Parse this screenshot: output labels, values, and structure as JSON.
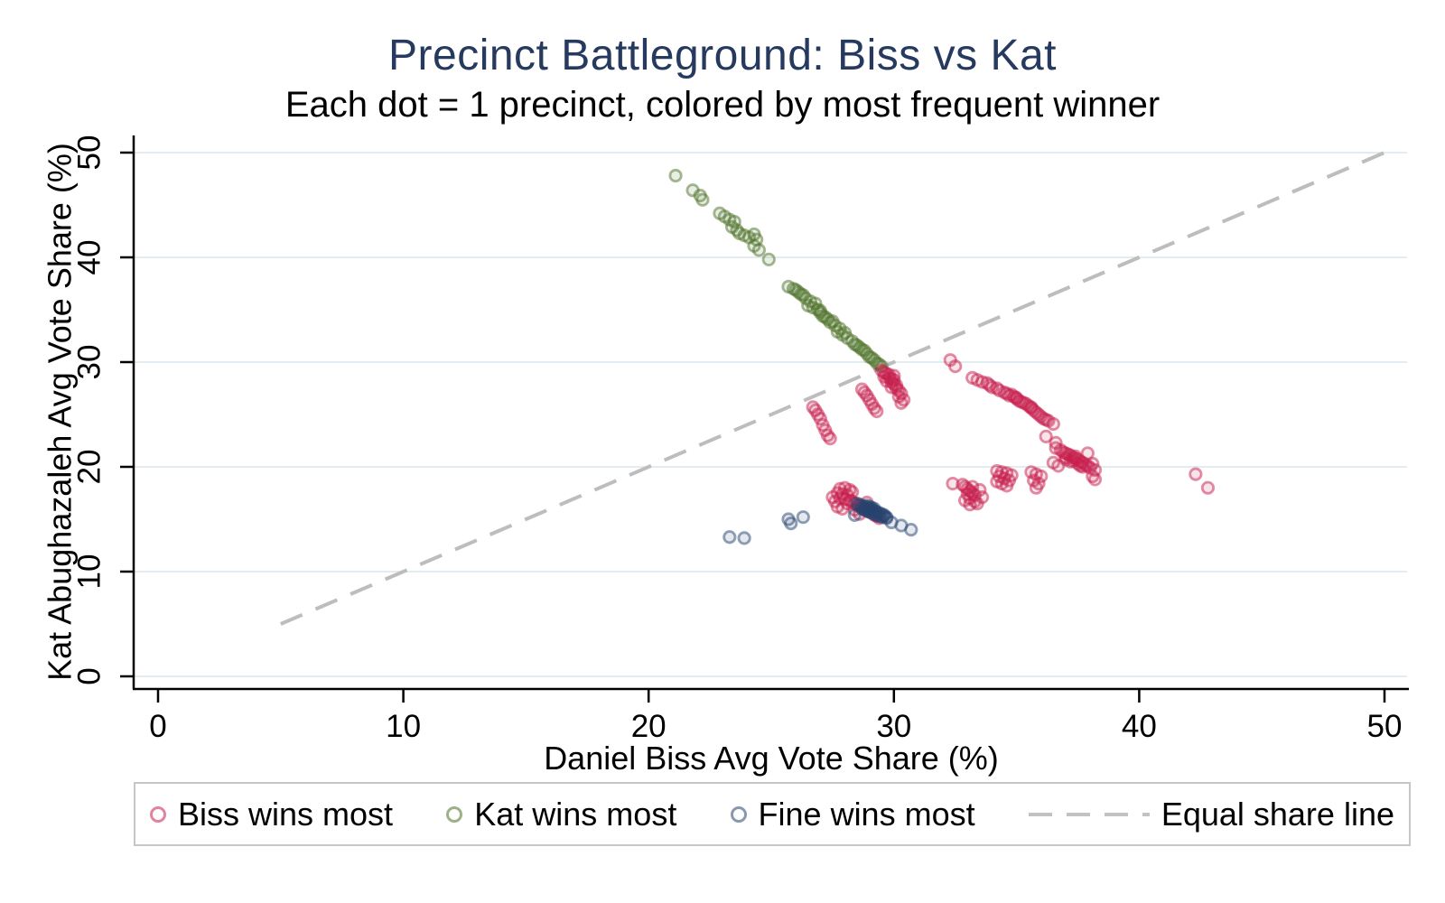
{
  "title": "Precinct Battleground: Biss vs Kat",
  "subtitle": "Each dot = 1 precinct, colored by most frequent winner",
  "colors": {
    "title": "#26395f",
    "biss": "#c71d4e",
    "kat": "#4d7127",
    "fine": "#26436f",
    "equal_line": "#bdbdbd",
    "gridline": "#e3edf1",
    "axis": "#000000",
    "legend_border": "#c6c6c6"
  },
  "legend": {
    "items": [
      {
        "label": "Biss wins most",
        "marker": "open-circle",
        "series": "biss"
      },
      {
        "label": "Kat wins most",
        "marker": "open-circle",
        "series": "kat"
      },
      {
        "label": "Fine wins most",
        "marker": "open-circle",
        "series": "fine"
      },
      {
        "label": "Equal share line",
        "marker": "dashed-line",
        "series": "equal_line"
      }
    ]
  },
  "chart_data": {
    "type": "scatter",
    "title": "Precinct Battleground: Biss vs Kat",
    "subtitle": "Each dot = 1 precinct, colored by most frequent winner",
    "xlabel": "Daniel Biss Avg Vote Share (%)",
    "ylabel": "Kat Abughazaleh Avg Vote Share (%)",
    "xlim": [
      0,
      50
    ],
    "ylim": [
      0,
      50
    ],
    "xticks": [
      0,
      10,
      20,
      30,
      40,
      50
    ],
    "yticks": [
      0,
      10,
      20,
      30,
      40,
      50
    ],
    "grid": "horizontal",
    "legend_position": "bottom",
    "series": [
      {
        "key": "equal_line",
        "name": "Equal share line",
        "type": "line",
        "style": "dashed",
        "color": "#bdbdbd",
        "points": [
          [
            5,
            5
          ],
          [
            50,
            50
          ]
        ]
      },
      {
        "key": "kat",
        "name": "Kat wins most",
        "type": "scatter",
        "marker": "open-circle",
        "color": "#4d7127",
        "points": [
          [
            21.1,
            47.8
          ],
          [
            21.8,
            46.4
          ],
          [
            22.1,
            45.9
          ],
          [
            22.2,
            45.5
          ],
          [
            22.9,
            44.2
          ],
          [
            23.1,
            43.9
          ],
          [
            23.3,
            43.6
          ],
          [
            23.5,
            43.4
          ],
          [
            23.4,
            42.9
          ],
          [
            23.6,
            42.6
          ],
          [
            23.7,
            42.3
          ],
          [
            23.9,
            42.1
          ],
          [
            24.1,
            41.9
          ],
          [
            24.3,
            42.2
          ],
          [
            24.4,
            41.7
          ],
          [
            24.3,
            41.1
          ],
          [
            24.5,
            40.7
          ],
          [
            24.9,
            39.8
          ],
          [
            25.7,
            37.2
          ],
          [
            25.9,
            37.0
          ],
          [
            26.1,
            36.7
          ],
          [
            26.3,
            36.4
          ],
          [
            26.4,
            36.1
          ],
          [
            26.6,
            35.8
          ],
          [
            26.5,
            35.4
          ],
          [
            26.7,
            35.2
          ],
          [
            26.9,
            35.0
          ],
          [
            27.0,
            34.7
          ],
          [
            27.1,
            34.4
          ],
          [
            27.3,
            34.1
          ],
          [
            27.4,
            33.8
          ],
          [
            27.6,
            33.5
          ],
          [
            27.8,
            33.2
          ],
          [
            27.7,
            32.9
          ],
          [
            27.9,
            32.6
          ],
          [
            28.1,
            32.3
          ],
          [
            28.3,
            32.0
          ],
          [
            28.4,
            31.7
          ],
          [
            28.6,
            31.4
          ],
          [
            28.8,
            31.1
          ],
          [
            28.9,
            30.8
          ],
          [
            29.0,
            30.5
          ],
          [
            29.2,
            30.2
          ],
          [
            29.3,
            29.9
          ],
          [
            29.5,
            29.6
          ],
          [
            26.8,
            35.6
          ],
          [
            27.2,
            34.3
          ],
          [
            27.5,
            33.9
          ],
          [
            28.0,
            32.8
          ],
          [
            28.5,
            31.6
          ],
          [
            29.1,
            30.4
          ],
          [
            26.2,
            36.5
          ],
          [
            26.0,
            36.9
          ],
          [
            28.7,
            31.2
          ],
          [
            29.4,
            29.8
          ],
          [
            27.0,
            34.9
          ]
        ]
      },
      {
        "key": "biss",
        "name": "Biss wins most",
        "type": "scatter",
        "marker": "open-circle",
        "color": "#c71d4e",
        "points": [
          [
            29.5,
            29.2
          ],
          [
            29.6,
            29.0
          ],
          [
            29.7,
            28.9
          ],
          [
            29.8,
            28.8
          ],
          [
            29.6,
            28.6
          ],
          [
            29.8,
            28.5
          ],
          [
            29.9,
            28.4
          ],
          [
            30.0,
            28.3
          ],
          [
            29.7,
            28.2
          ],
          [
            29.9,
            28.1
          ],
          [
            30.0,
            27.9
          ],
          [
            30.1,
            27.8
          ],
          [
            29.9,
            27.6
          ],
          [
            30.1,
            27.5
          ],
          [
            30.2,
            27.3
          ],
          [
            30.0,
            28.7
          ],
          [
            30.3,
            27.0
          ],
          [
            30.2,
            26.7
          ],
          [
            30.4,
            26.4
          ],
          [
            30.3,
            26.1
          ],
          [
            28.7,
            27.4
          ],
          [
            28.8,
            27.1
          ],
          [
            28.9,
            26.8
          ],
          [
            29.0,
            26.4
          ],
          [
            29.1,
            26.0
          ],
          [
            29.2,
            25.6
          ],
          [
            29.3,
            25.3
          ],
          [
            26.7,
            25.7
          ],
          [
            26.8,
            25.4
          ],
          [
            26.9,
            25.0
          ],
          [
            27.0,
            24.6
          ],
          [
            27.1,
            24.0
          ],
          [
            27.2,
            23.5
          ],
          [
            27.3,
            23.0
          ],
          [
            27.4,
            22.7
          ],
          [
            32.3,
            30.2
          ],
          [
            32.5,
            29.6
          ],
          [
            33.2,
            28.5
          ],
          [
            33.4,
            28.3
          ],
          [
            33.6,
            28.1
          ],
          [
            33.8,
            28.0
          ],
          [
            33.9,
            27.8
          ],
          [
            34.0,
            27.6
          ],
          [
            34.2,
            27.5
          ],
          [
            34.3,
            27.3
          ],
          [
            34.5,
            27.1
          ],
          [
            34.6,
            27.0
          ],
          [
            34.7,
            26.8
          ],
          [
            34.9,
            26.7
          ],
          [
            35.0,
            26.5
          ],
          [
            35.1,
            26.3
          ],
          [
            35.2,
            26.2
          ],
          [
            35.4,
            26.0
          ],
          [
            35.5,
            25.8
          ],
          [
            35.6,
            25.6
          ],
          [
            35.7,
            25.4
          ],
          [
            35.8,
            25.2
          ],
          [
            35.9,
            25.0
          ],
          [
            36.0,
            24.8
          ],
          [
            36.1,
            24.6
          ],
          [
            36.3,
            24.4
          ],
          [
            36.5,
            24.1
          ],
          [
            35.3,
            26.1
          ],
          [
            35.0,
            26.6
          ],
          [
            34.8,
            26.9
          ],
          [
            35.6,
            25.7
          ],
          [
            36.2,
            24.5
          ],
          [
            36.2,
            22.9
          ],
          [
            36.6,
            22.3
          ],
          [
            36.6,
            21.8
          ],
          [
            36.8,
            21.6
          ],
          [
            36.9,
            21.4
          ],
          [
            37.0,
            21.3
          ],
          [
            37.1,
            21.2
          ],
          [
            37.2,
            21.1
          ],
          [
            37.0,
            20.9
          ],
          [
            37.3,
            20.9
          ],
          [
            37.4,
            20.8
          ],
          [
            37.5,
            20.7
          ],
          [
            37.3,
            20.6
          ],
          [
            37.6,
            20.5
          ],
          [
            37.7,
            20.4
          ],
          [
            37.5,
            20.3
          ],
          [
            37.8,
            20.2
          ],
          [
            37.9,
            20.1
          ],
          [
            37.7,
            20.0
          ],
          [
            38.0,
            19.9
          ],
          [
            37.4,
            21.0
          ],
          [
            37.2,
            20.5
          ],
          [
            37.0,
            20.7
          ],
          [
            37.6,
            20.1
          ],
          [
            38.1,
            20.3
          ],
          [
            38.2,
            19.7
          ],
          [
            37.9,
            21.3
          ],
          [
            38.1,
            19.1
          ],
          [
            36.7,
            20.1
          ],
          [
            36.5,
            20.4
          ],
          [
            38.2,
            18.8
          ],
          [
            32.4,
            18.4
          ],
          [
            32.8,
            18.3
          ],
          [
            32.9,
            18.1
          ],
          [
            33.0,
            17.9
          ],
          [
            33.1,
            17.7
          ],
          [
            33.2,
            17.5
          ],
          [
            33.3,
            17.3
          ],
          [
            33.1,
            17.0
          ],
          [
            33.3,
            16.7
          ],
          [
            33.4,
            16.5
          ],
          [
            33.0,
            17.4
          ],
          [
            33.2,
            18.1
          ],
          [
            33.5,
            17.8
          ],
          [
            32.9,
            16.8
          ],
          [
            33.1,
            16.4
          ],
          [
            33.6,
            17.1
          ],
          [
            34.2,
            19.6
          ],
          [
            34.4,
            19.5
          ],
          [
            34.6,
            19.4
          ],
          [
            34.3,
            19.1
          ],
          [
            34.5,
            18.9
          ],
          [
            34.7,
            18.7
          ],
          [
            34.4,
            18.4
          ],
          [
            34.6,
            18.2
          ],
          [
            34.8,
            19.2
          ],
          [
            34.2,
            18.6
          ],
          [
            35.6,
            19.5
          ],
          [
            35.8,
            19.3
          ],
          [
            36.0,
            19.1
          ],
          [
            35.7,
            18.7
          ],
          [
            35.9,
            18.4
          ],
          [
            35.8,
            18.0
          ],
          [
            42.3,
            19.3
          ],
          [
            42.8,
            18.0
          ],
          [
            27.8,
            17.9
          ],
          [
            28.0,
            18.0
          ],
          [
            27.7,
            17.5
          ],
          [
            27.9,
            17.4
          ],
          [
            28.1,
            17.3
          ],
          [
            27.8,
            17.0
          ],
          [
            28.0,
            16.9
          ],
          [
            28.2,
            16.8
          ],
          [
            28.3,
            16.7
          ],
          [
            28.1,
            16.5
          ],
          [
            28.4,
            16.5
          ],
          [
            28.5,
            16.3
          ],
          [
            28.6,
            16.2
          ],
          [
            28.7,
            16.1
          ],
          [
            28.4,
            15.9
          ],
          [
            28.8,
            16.0
          ],
          [
            28.9,
            15.8
          ],
          [
            29.0,
            15.7
          ],
          [
            28.6,
            15.5
          ],
          [
            29.2,
            15.4
          ],
          [
            29.3,
            15.3
          ],
          [
            27.6,
            16.7
          ],
          [
            27.5,
            17.1
          ],
          [
            28.2,
            17.8
          ],
          [
            29.1,
            15.9
          ],
          [
            29.4,
            15.1
          ],
          [
            27.7,
            16.2
          ],
          [
            27.9,
            16.0
          ],
          [
            28.3,
            17.6
          ],
          [
            28.9,
            16.6
          ]
        ]
      },
      {
        "key": "fine",
        "name": "Fine wins most",
        "type": "scatter",
        "marker": "open-circle",
        "color": "#26436f",
        "points": [
          [
            23.3,
            13.3
          ],
          [
            23.9,
            13.2
          ],
          [
            25.7,
            15.0
          ],
          [
            25.8,
            14.6
          ],
          [
            26.3,
            15.2
          ],
          [
            28.4,
            15.4
          ],
          [
            29.7,
            15.2
          ],
          [
            29.9,
            14.7
          ],
          [
            30.3,
            14.4
          ],
          [
            30.7,
            14.0
          ],
          [
            28.5,
            16.5
          ],
          [
            28.6,
            16.4
          ],
          [
            28.7,
            16.3
          ],
          [
            28.8,
            16.2
          ],
          [
            28.9,
            16.1
          ],
          [
            29.0,
            16.0
          ],
          [
            29.1,
            15.9
          ],
          [
            29.2,
            15.8
          ],
          [
            29.3,
            15.7
          ],
          [
            29.4,
            15.6
          ],
          [
            29.5,
            15.5
          ],
          [
            29.6,
            15.4
          ],
          [
            28.7,
            16.0
          ],
          [
            28.8,
            15.9
          ],
          [
            28.9,
            15.8
          ],
          [
            29.0,
            15.7
          ],
          [
            29.1,
            15.6
          ],
          [
            29.2,
            15.5
          ],
          [
            29.3,
            15.4
          ],
          [
            29.4,
            15.3
          ],
          [
            28.9,
            16.3
          ],
          [
            29.0,
            16.2
          ],
          [
            29.1,
            16.1
          ],
          [
            29.2,
            16.0
          ],
          [
            29.5,
            15.2
          ],
          [
            29.6,
            15.3
          ],
          [
            29.7,
            15.1
          ]
        ]
      }
    ]
  }
}
